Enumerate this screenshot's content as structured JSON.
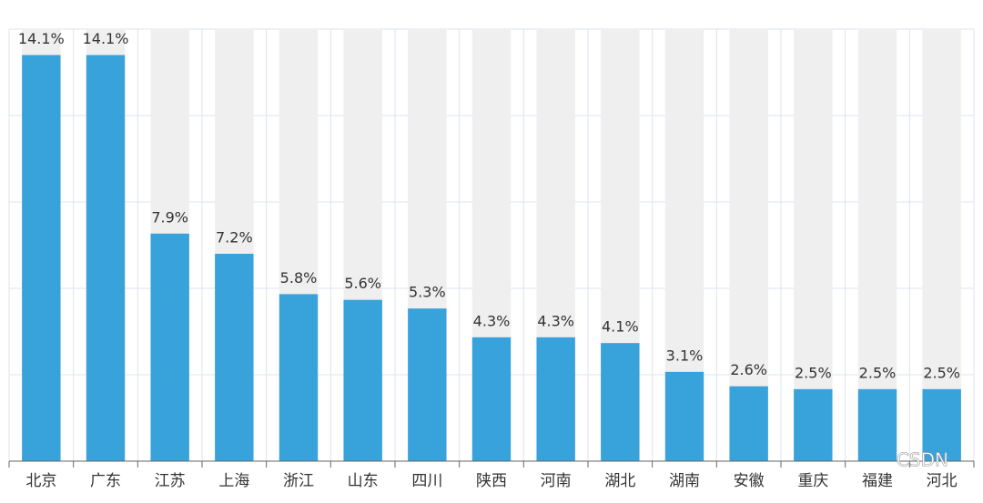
{
  "chart_data": {
    "type": "bar",
    "categories": [
      "北京",
      "广东",
      "江苏",
      "上海",
      "浙江",
      "山东",
      "四川",
      "陕西",
      "河南",
      "湖北",
      "湖南",
      "安徽",
      "重庆",
      "福建",
      "河北"
    ],
    "values": [
      14.1,
      14.1,
      7.9,
      7.2,
      5.8,
      5.6,
      5.3,
      4.3,
      4.3,
      4.1,
      3.1,
      2.6,
      2.5,
      2.5,
      2.5
    ],
    "value_labels": [
      "14.1%",
      "14.1%",
      "7.9%",
      "7.2%",
      "5.8%",
      "5.6%",
      "5.3%",
      "4.3%",
      "4.3%",
      "4.1%",
      "3.1%",
      "2.6%",
      "2.5%",
      "2.5%",
      "2.5%"
    ],
    "color": "#38a2db",
    "ylim": [
      0,
      15
    ],
    "yticks": [
      0,
      3,
      6,
      9,
      12,
      15
    ],
    "grid": true,
    "watermark": "CSDN"
  }
}
